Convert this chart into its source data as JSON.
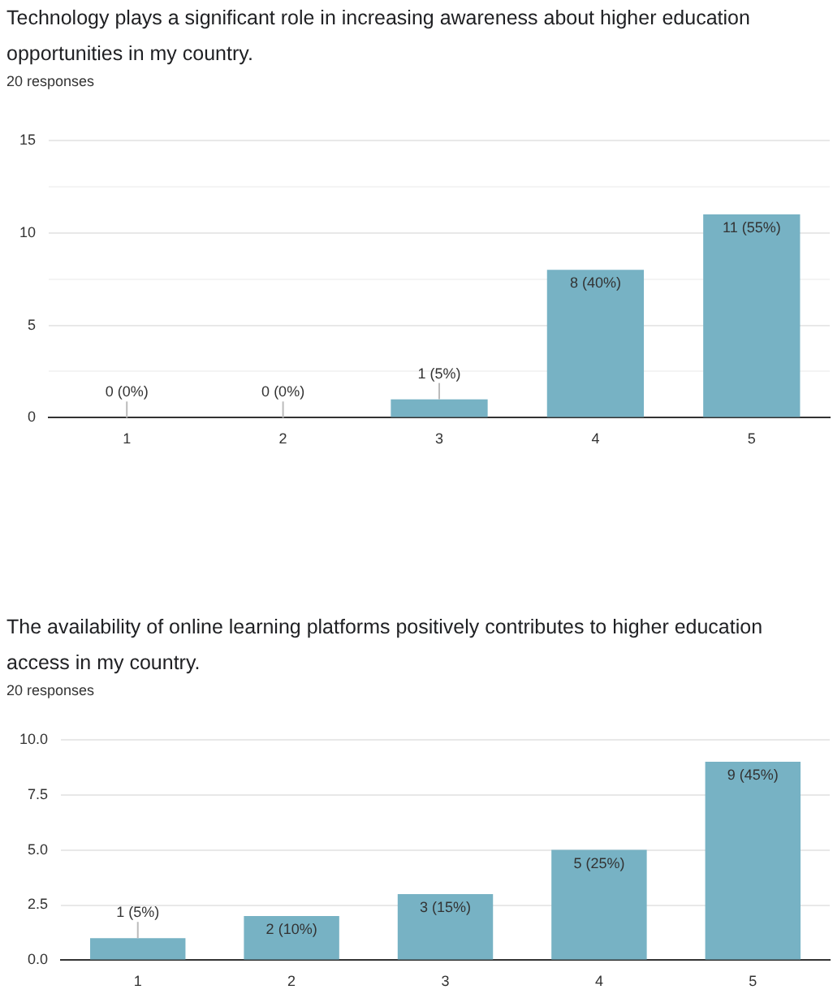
{
  "chart_data": [
    {
      "type": "bar",
      "title": "Technology plays a significant role in increasing awareness about higher education opportunities in my country.",
      "subtitle": "20 responses",
      "categories": [
        "1",
        "2",
        "3",
        "4",
        "5"
      ],
      "values": [
        0,
        0,
        1,
        8,
        11
      ],
      "value_labels": [
        "0 (0%)",
        "0 (0%)",
        "1 (5%)",
        "8 (40%)",
        "11 (55%)"
      ],
      "color": "#77b2c4",
      "ylim": [
        0,
        15
      ],
      "yticks": [
        0,
        {
          "value": 2.5,
          "label": null
        },
        5,
        {
          "value": 7.5,
          "label": null
        },
        10,
        {
          "value": 12.5,
          "label": null
        },
        15
      ],
      "grid": "y",
      "legend": false
    },
    {
      "type": "bar",
      "title": "The availability of online learning platforms positively contributes to higher education access in my country.",
      "subtitle": "20 responses",
      "categories": [
        "1",
        "2",
        "3",
        "4",
        "5"
      ],
      "values": [
        1,
        2,
        3,
        5,
        9
      ],
      "value_labels": [
        "1 (5%)",
        "2 (10%)",
        "3 (15%)",
        "5 (25%)",
        "9 (45%)"
      ],
      "color": "#77b2c4",
      "ylim": [
        0,
        10
      ],
      "yticks": [
        {
          "value": 0,
          "label": "0.0"
        },
        {
          "value": 2.5,
          "label": "2.5"
        },
        {
          "value": 5,
          "label": "5.0"
        },
        {
          "value": 7.5,
          "label": "7.5"
        },
        {
          "value": 10,
          "label": "10.0"
        }
      ],
      "grid": "y",
      "legend": false
    }
  ]
}
